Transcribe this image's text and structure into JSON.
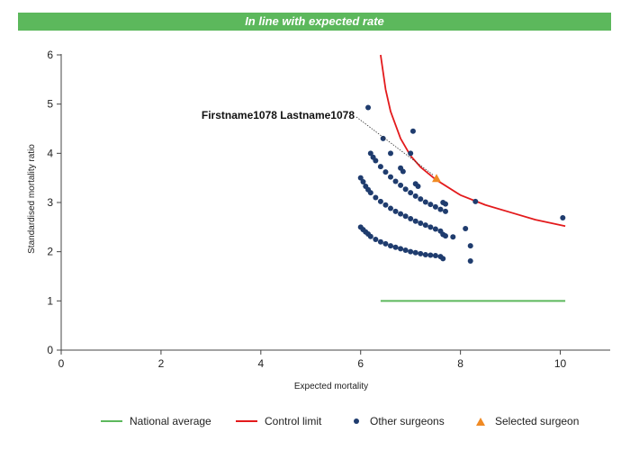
{
  "banner": {
    "text": "In line with expected rate",
    "color": "#5cb85c"
  },
  "annotation": {
    "label": "Firstname1078 Lastname1078"
  },
  "legend": {
    "national": "National average",
    "control": "Control limit",
    "others": "Other surgeons",
    "selected": "Selected surgeon"
  },
  "colors": {
    "national": "#5cb85c",
    "control": "#e31a1c",
    "others": "#1f3c6e",
    "selected": "#f08a24"
  },
  "chart_data": {
    "type": "scatter",
    "xlabel": "Expected mortality",
    "ylabel": "Standardised mortality ratio",
    "xlim": [
      0,
      11
    ],
    "ylim": [
      0,
      6
    ],
    "xticks": [
      "0",
      "2",
      "4",
      "6",
      "8",
      "10"
    ],
    "yticks": [
      "0",
      "1",
      "2",
      "3",
      "4",
      "5",
      "6"
    ],
    "grid": false,
    "legend_position": "bottom",
    "series": [
      {
        "name": "National average",
        "kind": "line",
        "x": [
          6.4,
          10.1
        ],
        "y": [
          1.0,
          1.0
        ]
      },
      {
        "name": "Control limit",
        "kind": "line",
        "x": [
          6.4,
          6.5,
          6.6,
          6.8,
          7.0,
          7.2,
          7.5,
          8.0,
          8.5,
          9.0,
          9.5,
          10.1
        ],
        "y": [
          6.0,
          5.3,
          4.85,
          4.3,
          3.95,
          3.72,
          3.47,
          3.15,
          2.95,
          2.8,
          2.65,
          2.52
        ]
      },
      {
        "name": "Other surgeons",
        "kind": "scatter",
        "x": [
          6.0,
          6.05,
          6.1,
          6.15,
          6.2,
          6.3,
          6.4,
          6.5,
          6.6,
          6.7,
          6.8,
          6.9,
          7.0,
          7.1,
          7.2,
          7.3,
          7.4,
          7.5,
          7.6,
          6.0,
          6.05,
          6.1,
          6.15,
          6.2,
          6.3,
          6.4,
          6.5,
          6.6,
          6.7,
          6.8,
          6.9,
          7.0,
          7.1,
          7.2,
          7.3,
          7.4,
          7.5,
          7.6,
          7.65,
          7.7,
          7.85,
          6.2,
          6.25,
          6.3,
          6.4,
          6.5,
          6.6,
          6.7,
          6.8,
          6.9,
          7.0,
          7.1,
          7.2,
          7.3,
          7.4,
          7.5,
          7.6,
          7.7,
          6.15,
          6.45,
          7.05,
          7.0,
          6.6,
          6.8,
          6.85,
          7.1,
          7.15,
          7.65,
          7.7,
          8.1,
          8.2,
          8.2,
          8.3,
          10.05,
          7.65
        ],
        "y": [
          2.5,
          2.45,
          2.4,
          2.36,
          2.31,
          2.25,
          2.2,
          2.16,
          2.12,
          2.09,
          2.06,
          2.03,
          2.0,
          1.98,
          1.96,
          1.94,
          1.93,
          1.92,
          1.9,
          3.5,
          3.42,
          3.33,
          3.26,
          3.2,
          3.1,
          3.02,
          2.95,
          2.88,
          2.82,
          2.77,
          2.72,
          2.67,
          2.62,
          2.58,
          2.54,
          2.5,
          2.46,
          2.42,
          2.35,
          2.32,
          2.3,
          4.0,
          3.92,
          3.85,
          3.73,
          3.62,
          3.52,
          3.43,
          3.35,
          3.27,
          3.2,
          3.13,
          3.07,
          3.01,
          2.96,
          2.91,
          2.86,
          2.82,
          4.93,
          4.3,
          4.45,
          4.0,
          4.0,
          3.7,
          3.63,
          3.38,
          3.33,
          3.0,
          2.97,
          2.47,
          2.12,
          1.81,
          3.02,
          2.69,
          1.86
        ]
      },
      {
        "name": "Selected surgeon",
        "kind": "scatter",
        "x": [
          7.52
        ],
        "y": [
          3.49
        ]
      }
    ]
  }
}
